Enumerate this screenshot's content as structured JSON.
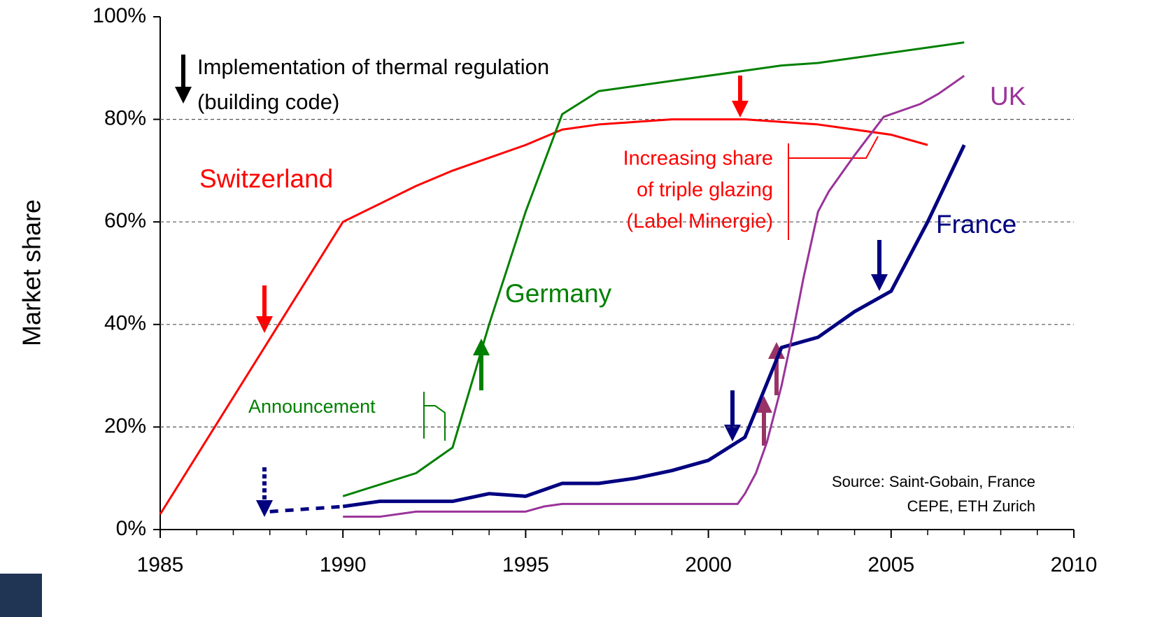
{
  "chart_data": {
    "type": "line",
    "y_label": "Market share",
    "xlim": [
      1985,
      2010
    ],
    "xticks": [
      1985,
      1990,
      1995,
      2000,
      2005,
      2010
    ],
    "xminorticks": [
      1985,
      1986,
      1987,
      1988,
      1989,
      1990,
      1991,
      1992,
      1993,
      1994,
      1995,
      1996,
      1997,
      1998,
      1999,
      2000,
      2001,
      2002,
      2003,
      2004,
      2005,
      2006,
      2007,
      2008,
      2009,
      2010
    ],
    "ylim": [
      0,
      100
    ],
    "yticks": [
      {
        "value": 0,
        "label": "0%"
      },
      {
        "value": 20,
        "label": "20%"
      },
      {
        "value": 40,
        "label": "40%"
      },
      {
        "value": 60,
        "label": "60%"
      },
      {
        "value": 80,
        "label": "80%"
      },
      {
        "value": 100,
        "label": "100%"
      }
    ],
    "grid": true,
    "series": [
      {
        "name": "Switzerland",
        "color": "#ff0000",
        "x": [
          1985,
          1990,
          1991,
          1992,
          1993,
          1994,
          1995,
          1996,
          1997,
          1998,
          1999,
          2000,
          2001,
          2002,
          2003,
          2004,
          2005,
          2006
        ],
        "values": [
          3,
          60,
          63.5,
          67,
          70,
          72.5,
          75,
          78,
          79,
          79.5,
          80,
          80,
          80,
          79.5,
          79,
          78,
          77,
          75
        ]
      },
      {
        "name": "Germany",
        "color": "#008000",
        "x": [
          1990,
          1992,
          1993,
          1994,
          1995,
          1996,
          1997,
          2000,
          2001,
          2002,
          2003,
          2007
        ],
        "values": [
          6.5,
          11,
          16,
          40,
          62,
          81,
          85.5,
          88.5,
          89.5,
          90.5,
          91,
          95
        ]
      },
      {
        "name": "France",
        "color": "#000080",
        "x": [
          1990,
          1991,
          1992,
          1993,
          1994,
          1995,
          1996,
          1997,
          1998,
          1999,
          2000,
          2001,
          2002,
          2003,
          2004,
          2005,
          2006,
          2007
        ],
        "values": [
          4.5,
          5.5,
          5.5,
          5.5,
          7,
          6.5,
          9,
          9,
          10,
          11.5,
          13.5,
          18,
          35.5,
          37.5,
          42.5,
          46.5,
          60,
          75
        ]
      },
      {
        "color": "#000080",
        "dashed": true,
        "x": [
          1988,
          1990
        ],
        "values": [
          3.5,
          4.5
        ]
      },
      {
        "name": "UK",
        "color": "#993399",
        "x": [
          1990,
          1991,
          1992,
          1995,
          1995.5,
          1996,
          2000.8,
          2001,
          2001.3,
          2001.6,
          2002,
          2002.3,
          2002.6,
          2003,
          2003.3,
          2004,
          2004.8,
          2005.2,
          2005.8,
          2006.3,
          2007
        ],
        "values": [
          2.5,
          2.5,
          3.5,
          3.5,
          4.5,
          5,
          5,
          7,
          11,
          17,
          28,
          38,
          49,
          62,
          66,
          73,
          80.5,
          81.5,
          83,
          85,
          88.5
        ]
      }
    ],
    "annotations": {
      "regulation": [
        "Implementation of thermal regulation",
        "(building code)"
      ],
      "announcement": "Announcement",
      "triple_glazing": [
        "Increasing share",
        "of triple glazing",
        "(Label Minergie)"
      ],
      "source": [
        "Source: Saint-Gobain, France",
        "CEPE, ETH Zurich"
      ]
    }
  }
}
